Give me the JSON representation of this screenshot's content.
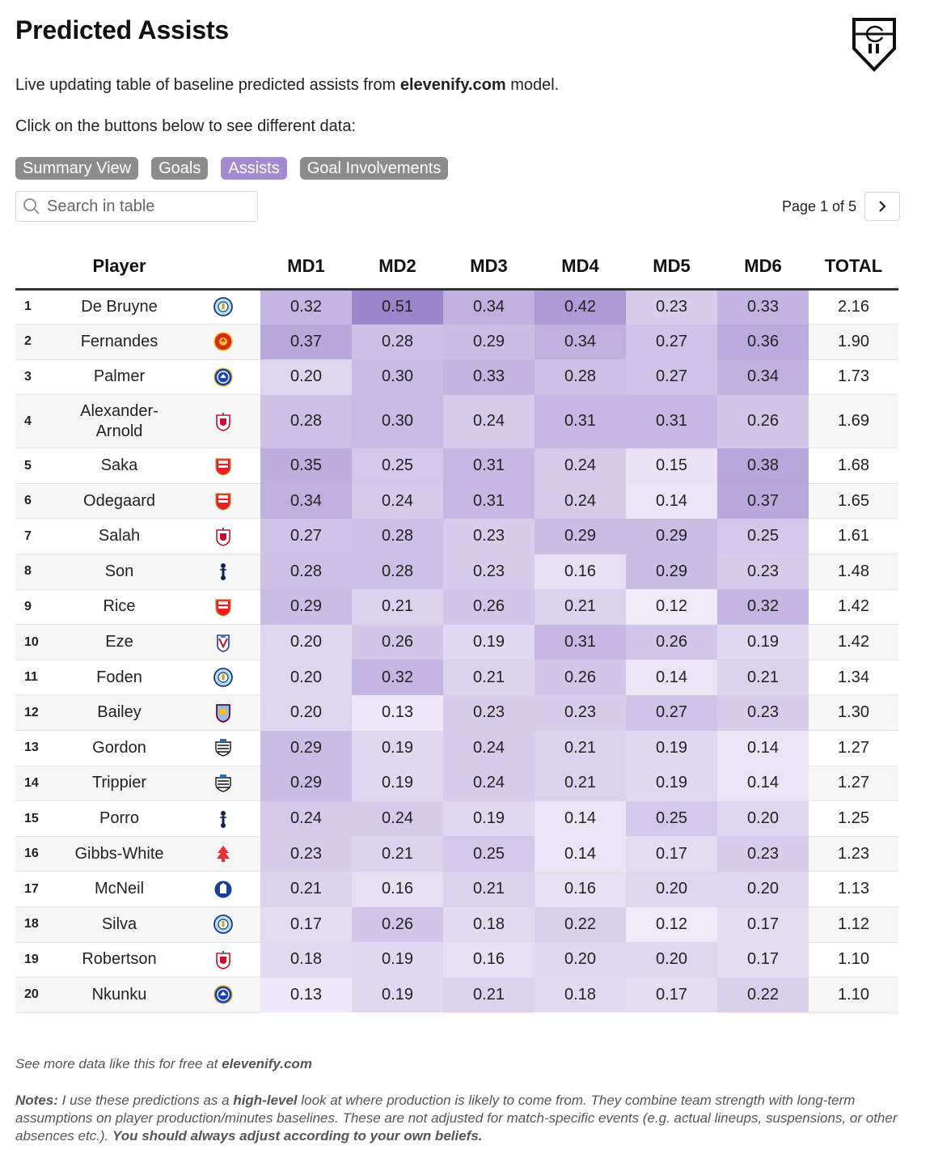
{
  "header": {
    "title": "Predicted Assists",
    "subtitle_pre": "Live updating table of baseline predicted assists from ",
    "subtitle_site": "elevenify.com",
    "subtitle_post": " model.",
    "prompt": "Click on the buttons below to see different data:"
  },
  "buttons": [
    "Summary View",
    "Goals",
    "Assists",
    "Goal Involvements"
  ],
  "active_button": "Assists",
  "search": {
    "placeholder": "Search in table"
  },
  "pager": {
    "label": "Page 1 of 5"
  },
  "table": {
    "headers": [
      "Player",
      "MD1",
      "MD2",
      "MD3",
      "MD4",
      "MD5",
      "MD6",
      "TOTAL"
    ],
    "rows": [
      {
        "rank": "1",
        "player": "De Bruyne",
        "club": "man-city",
        "md": [
          "0.32",
          "0.51",
          "0.34",
          "0.42",
          "0.23",
          "0.33"
        ],
        "total": "2.16"
      },
      {
        "rank": "2",
        "player": "Fernandes",
        "club": "man-utd",
        "md": [
          "0.37",
          "0.28",
          "0.29",
          "0.34",
          "0.27",
          "0.36"
        ],
        "total": "1.90"
      },
      {
        "rank": "3",
        "player": "Palmer",
        "club": "chelsea",
        "md": [
          "0.20",
          "0.30",
          "0.33",
          "0.28",
          "0.27",
          "0.34"
        ],
        "total": "1.73"
      },
      {
        "rank": "4",
        "player": "Alexander-Arnold",
        "club": "liverpool",
        "md": [
          "0.28",
          "0.30",
          "0.24",
          "0.31",
          "0.31",
          "0.26"
        ],
        "total": "1.69"
      },
      {
        "rank": "5",
        "player": "Saka",
        "club": "arsenal",
        "md": [
          "0.35",
          "0.25",
          "0.31",
          "0.24",
          "0.15",
          "0.38"
        ],
        "total": "1.68"
      },
      {
        "rank": "6",
        "player": "Odegaard",
        "club": "arsenal",
        "md": [
          "0.34",
          "0.24",
          "0.31",
          "0.24",
          "0.14",
          "0.37"
        ],
        "total": "1.65"
      },
      {
        "rank": "7",
        "player": "Salah",
        "club": "liverpool",
        "md": [
          "0.27",
          "0.28",
          "0.23",
          "0.29",
          "0.29",
          "0.25"
        ],
        "total": "1.61"
      },
      {
        "rank": "8",
        "player": "Son",
        "club": "tottenham",
        "md": [
          "0.28",
          "0.28",
          "0.23",
          "0.16",
          "0.29",
          "0.23"
        ],
        "total": "1.48"
      },
      {
        "rank": "9",
        "player": "Rice",
        "club": "arsenal",
        "md": [
          "0.29",
          "0.21",
          "0.26",
          "0.21",
          "0.12",
          "0.32"
        ],
        "total": "1.42"
      },
      {
        "rank": "10",
        "player": "Eze",
        "club": "crystal-palace",
        "md": [
          "0.20",
          "0.26",
          "0.19",
          "0.31",
          "0.26",
          "0.19"
        ],
        "total": "1.42"
      },
      {
        "rank": "11",
        "player": "Foden",
        "club": "man-city",
        "md": [
          "0.20",
          "0.32",
          "0.21",
          "0.26",
          "0.14",
          "0.21"
        ],
        "total": "1.34"
      },
      {
        "rank": "12",
        "player": "Bailey",
        "club": "aston-villa",
        "md": [
          "0.20",
          "0.13",
          "0.23",
          "0.23",
          "0.27",
          "0.23"
        ],
        "total": "1.30"
      },
      {
        "rank": "13",
        "player": "Gordon",
        "club": "newcastle",
        "md": [
          "0.29",
          "0.19",
          "0.24",
          "0.21",
          "0.19",
          "0.14"
        ],
        "total": "1.27"
      },
      {
        "rank": "14",
        "player": "Trippier",
        "club": "newcastle",
        "md": [
          "0.29",
          "0.19",
          "0.24",
          "0.21",
          "0.19",
          "0.14"
        ],
        "total": "1.27"
      },
      {
        "rank": "15",
        "player": "Porro",
        "club": "tottenham",
        "md": [
          "0.24",
          "0.24",
          "0.19",
          "0.14",
          "0.25",
          "0.20"
        ],
        "total": "1.25"
      },
      {
        "rank": "16",
        "player": "Gibbs-White",
        "club": "nottm-forest",
        "md": [
          "0.23",
          "0.21",
          "0.25",
          "0.14",
          "0.17",
          "0.23"
        ],
        "total": "1.23"
      },
      {
        "rank": "17",
        "player": "McNeil",
        "club": "everton",
        "md": [
          "0.21",
          "0.16",
          "0.21",
          "0.16",
          "0.20",
          "0.20"
        ],
        "total": "1.13"
      },
      {
        "rank": "18",
        "player": "Silva",
        "club": "man-city",
        "md": [
          "0.17",
          "0.26",
          "0.18",
          "0.22",
          "0.12",
          "0.17"
        ],
        "total": "1.12"
      },
      {
        "rank": "19",
        "player": "Robertson",
        "club": "liverpool",
        "md": [
          "0.18",
          "0.19",
          "0.16",
          "0.20",
          "0.20",
          "0.17"
        ],
        "total": "1.10"
      },
      {
        "rank": "20",
        "player": "Nkunku",
        "club": "chelsea",
        "md": [
          "0.13",
          "0.19",
          "0.21",
          "0.18",
          "0.17",
          "0.22"
        ],
        "total": "1.10"
      }
    ]
  },
  "footer": {
    "more_pre": "See more data like this for free at ",
    "more_site": "elevenify.com",
    "notes_label": "Notes:",
    "notes_1": " I use these predictions as a ",
    "notes_bold1": "high-level",
    "notes_2": " look at where production is likely to come from. They combine team strength with long-term assumptions on player production/minutes baselines. These are not adjusted for match-specific events (e.g. actual lineups, suspensions, or other absences etc.). ",
    "notes_bold2": "You should always adjust according to your own beliefs."
  },
  "colors": {
    "heat_low": "#f3effa",
    "heat_high": "#9b84cb",
    "button_default": "#8c8c8c",
    "button_active": "#a48bd0"
  },
  "icons": [
    "elevenify-logo-icon",
    "search-icon",
    "chevron-right-icon"
  ]
}
